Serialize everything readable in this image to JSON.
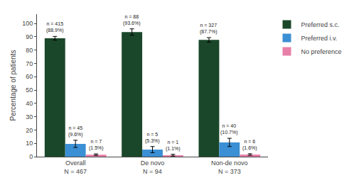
{
  "chart_data": {
    "type": "bar",
    "categories": [
      "Overall\nN = 467",
      "De novo\nN = 94",
      "Non-de novo\nN = 373"
    ],
    "series": [
      {
        "name": "Preferred s.c.",
        "color": "#1a472a",
        "values": [
          88.9,
          93.6,
          87.7
        ],
        "errors": [
          1.4,
          2.4,
          1.7
        ],
        "value_labels": [
          "n = 415\n(88.9%)",
          "n = 88\n(93.6%)",
          "n = 327\n(87.7%)"
        ]
      },
      {
        "name": "Preferred i.v.",
        "color": "#3b8fd4",
        "values": [
          9.6,
          5.3,
          10.7
        ],
        "errors": [
          2.7,
          2.3,
          3.1
        ],
        "value_labels": [
          "n = 45\n(9.6%)",
          "n = 5\n(5.3%)",
          "n = 40\n(10.7%)"
        ]
      },
      {
        "name": "No preference",
        "color": "#e87fa8",
        "values": [
          1.5,
          1.1,
          1.6
        ],
        "errors": [
          0.55,
          0.65,
          0.6
        ],
        "value_labels": [
          "n = 7\n(1.5%)",
          "n = 1\n(1.1%)",
          "n = 6\n(1.6%)"
        ]
      }
    ],
    "ylabel": "Percentage of patients",
    "ylim": [
      0,
      107
    ],
    "yticks": [
      0,
      10,
      20,
      30,
      40,
      50,
      60,
      70,
      80,
      90,
      100
    ],
    "grid": false,
    "legend": "right",
    "data_labels": true
  }
}
